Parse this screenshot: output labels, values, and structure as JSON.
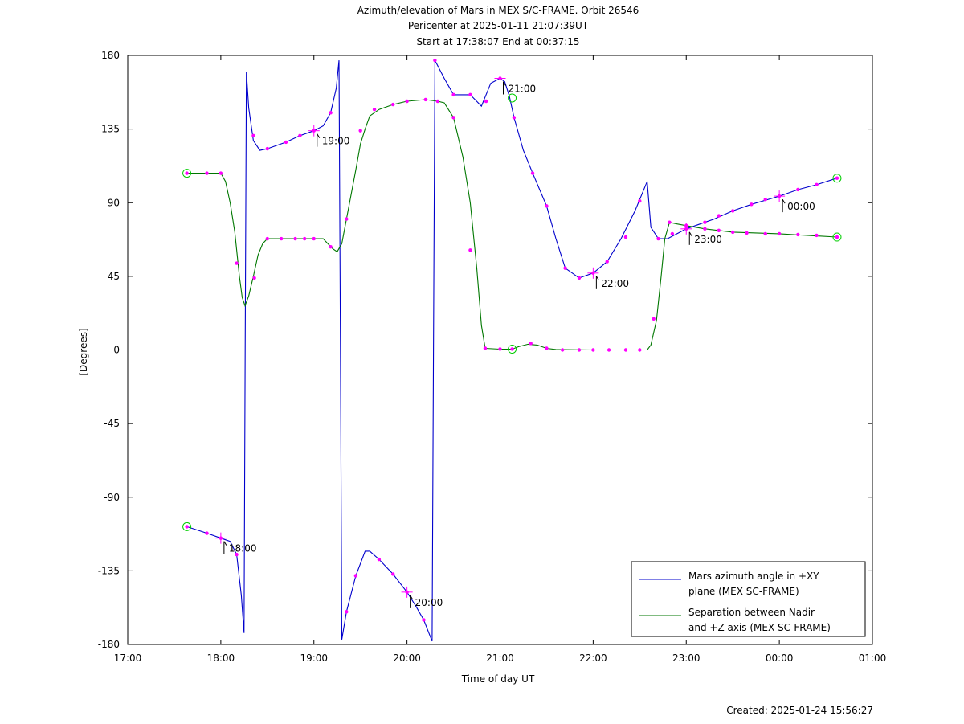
{
  "chart_data": {
    "type": "line",
    "title_lines": [
      "Azimuth/elevation of Mars in MEX S/C-FRAME.  Orbit 26546",
      "Pericenter at 2025-01-11 21:07:39UT",
      "Start at 17:38:07 End at 00:37:15"
    ],
    "xlabel": "Time of day UT",
    "ylabel": "[Degrees]",
    "xlim": [
      17,
      25
    ],
    "ylim": [
      -180,
      180
    ],
    "x_ticks": [
      {
        "v": 17,
        "label": "17:00"
      },
      {
        "v": 18,
        "label": "18:00"
      },
      {
        "v": 19,
        "label": "19:00"
      },
      {
        "v": 20,
        "label": "20:00"
      },
      {
        "v": 21,
        "label": "21:00"
      },
      {
        "v": 22,
        "label": "22:00"
      },
      {
        "v": 23,
        "label": "23:00"
      },
      {
        "v": 24,
        "label": "00:00"
      },
      {
        "v": 25,
        "label": "01:00"
      }
    ],
    "y_ticks": [
      {
        "v": 180,
        "label": "180"
      },
      {
        "v": 135,
        "label": "135"
      },
      {
        "v": 90,
        "label": "90"
      },
      {
        "v": 45,
        "label": "45"
      },
      {
        "v": 0,
        "label": "0"
      },
      {
        "v": -45,
        "label": "-45"
      },
      {
        "v": -90,
        "label": "-90"
      },
      {
        "v": -135,
        "label": "-135"
      },
      {
        "v": -180,
        "label": "-180"
      }
    ],
    "legend_position": "bottom-right",
    "series": [
      {
        "name_lines": [
          "Mars azimuth angle in +XY",
          "plane (MEX SC-FRAME)"
        ],
        "color": "#0000cc",
        "points": [
          [
            17.635,
            -108
          ],
          [
            17.85,
            -112
          ],
          [
            18.0,
            -115
          ],
          [
            18.1,
            -117
          ],
          [
            18.17,
            -125
          ],
          [
            18.22,
            -150
          ],
          [
            18.25,
            -173
          ],
          [
            18.262,
            0
          ],
          [
            18.275,
            170
          ],
          [
            18.3,
            148
          ],
          [
            18.35,
            128
          ],
          [
            18.42,
            122
          ],
          [
            18.5,
            123
          ],
          [
            18.7,
            127
          ],
          [
            18.85,
            131
          ],
          [
            19.0,
            134
          ],
          [
            19.1,
            137
          ],
          [
            19.18,
            145
          ],
          [
            19.24,
            160
          ],
          [
            19.27,
            177
          ],
          [
            19.285,
            0
          ],
          [
            19.3,
            -177
          ],
          [
            19.35,
            -160
          ],
          [
            19.45,
            -138
          ],
          [
            19.55,
            -123
          ],
          [
            19.6,
            -123
          ],
          [
            19.7,
            -128
          ],
          [
            19.85,
            -137
          ],
          [
            20.0,
            -148
          ],
          [
            20.1,
            -157
          ],
          [
            20.18,
            -165
          ],
          [
            20.27,
            -178
          ],
          [
            20.285,
            0
          ],
          [
            20.3,
            177
          ],
          [
            20.4,
            166
          ],
          [
            20.5,
            156
          ],
          [
            20.6,
            156
          ],
          [
            20.68,
            156
          ],
          [
            20.8,
            149
          ],
          [
            20.9,
            163
          ],
          [
            21.0,
            166
          ],
          [
            21.05,
            164
          ],
          [
            21.1,
            155
          ],
          [
            21.15,
            142
          ],
          [
            21.25,
            122
          ],
          [
            21.35,
            108
          ],
          [
            21.5,
            88
          ],
          [
            21.6,
            68
          ],
          [
            21.7,
            50
          ],
          [
            21.85,
            44
          ],
          [
            22.0,
            47
          ],
          [
            22.15,
            54
          ],
          [
            22.3,
            68
          ],
          [
            22.45,
            85
          ],
          [
            22.58,
            103
          ],
          [
            22.62,
            75
          ],
          [
            22.7,
            68
          ],
          [
            22.8,
            68
          ],
          [
            22.9,
            71
          ],
          [
            23.0,
            74
          ],
          [
            23.15,
            77
          ],
          [
            23.3,
            80
          ],
          [
            23.5,
            85
          ],
          [
            23.7,
            89
          ],
          [
            24.0,
            94
          ],
          [
            24.2,
            98
          ],
          [
            24.4,
            101
          ],
          [
            24.62,
            105
          ]
        ],
        "markers": [
          [
            17.635,
            -108
          ],
          [
            17.85,
            -112
          ],
          [
            18.0,
            -115
          ],
          [
            18.17,
            -125
          ],
          [
            18.35,
            131
          ],
          [
            18.5,
            123
          ],
          [
            18.7,
            127
          ],
          [
            18.85,
            131
          ],
          [
            19.0,
            134
          ],
          [
            19.18,
            145
          ],
          [
            19.35,
            -160
          ],
          [
            19.45,
            -138
          ],
          [
            19.7,
            -128
          ],
          [
            19.85,
            -137
          ],
          [
            20.0,
            -148
          ],
          [
            20.18,
            -165
          ],
          [
            20.3,
            177
          ],
          [
            20.5,
            156
          ],
          [
            20.68,
            156
          ],
          [
            20.85,
            152
          ],
          [
            21.0,
            166
          ],
          [
            21.15,
            142
          ],
          [
            21.35,
            108
          ],
          [
            21.5,
            88
          ],
          [
            21.7,
            50
          ],
          [
            21.85,
            44
          ],
          [
            22.0,
            47
          ],
          [
            22.15,
            54
          ],
          [
            22.35,
            69
          ],
          [
            22.5,
            91
          ],
          [
            22.7,
            68
          ],
          [
            22.85,
            71
          ],
          [
            23.0,
            74
          ],
          [
            23.2,
            78
          ],
          [
            23.35,
            82
          ],
          [
            23.5,
            85
          ],
          [
            23.7,
            89
          ],
          [
            23.85,
            92
          ],
          [
            24.0,
            94
          ],
          [
            24.2,
            98
          ],
          [
            24.4,
            101
          ],
          [
            24.62,
            105
          ]
        ]
      },
      {
        "name_lines": [
          "Separation between Nadir",
          "and +Z axis (MEX SC-FRAME)"
        ],
        "color": "#007700",
        "points": [
          [
            17.635,
            108
          ],
          [
            18.0,
            108
          ],
          [
            18.05,
            103
          ],
          [
            18.1,
            90
          ],
          [
            18.15,
            72
          ],
          [
            18.2,
            45
          ],
          [
            18.23,
            32
          ],
          [
            18.26,
            27
          ],
          [
            18.3,
            33
          ],
          [
            18.35,
            45
          ],
          [
            18.4,
            58
          ],
          [
            18.45,
            65
          ],
          [
            18.5,
            68
          ],
          [
            18.6,
            68
          ],
          [
            18.8,
            68
          ],
          [
            19.0,
            68
          ],
          [
            19.1,
            68
          ],
          [
            19.15,
            65
          ],
          [
            19.2,
            62
          ],
          [
            19.25,
            60
          ],
          [
            19.3,
            65
          ],
          [
            19.35,
            80
          ],
          [
            19.45,
            110
          ],
          [
            19.5,
            126
          ],
          [
            19.55,
            135
          ],
          [
            19.6,
            143
          ],
          [
            19.7,
            147
          ],
          [
            19.85,
            150
          ],
          [
            20.0,
            152
          ],
          [
            20.2,
            153
          ],
          [
            20.33,
            152
          ],
          [
            20.4,
            151
          ],
          [
            20.5,
            142
          ],
          [
            20.6,
            118
          ],
          [
            20.68,
            90
          ],
          [
            20.75,
            50
          ],
          [
            20.8,
            15
          ],
          [
            20.84,
            1
          ],
          [
            21.0,
            0.5
          ],
          [
            21.13,
            0.5
          ],
          [
            21.2,
            2
          ],
          [
            21.3,
            3.5
          ],
          [
            21.4,
            3
          ],
          [
            21.5,
            1
          ],
          [
            21.6,
            0.3
          ],
          [
            22.0,
            0
          ],
          [
            22.58,
            0
          ],
          [
            22.62,
            3
          ],
          [
            22.68,
            18
          ],
          [
            22.73,
            45
          ],
          [
            22.77,
            68
          ],
          [
            22.82,
            78
          ],
          [
            22.9,
            77
          ],
          [
            23.0,
            76
          ],
          [
            23.2,
            74
          ],
          [
            23.5,
            72
          ],
          [
            24.0,
            71
          ],
          [
            24.3,
            70
          ],
          [
            24.62,
            69
          ]
        ],
        "markers": [
          [
            17.635,
            108
          ],
          [
            17.85,
            108
          ],
          [
            18.0,
            108
          ],
          [
            18.17,
            53
          ],
          [
            18.36,
            44
          ],
          [
            18.5,
            68
          ],
          [
            18.65,
            68
          ],
          [
            18.8,
            68
          ],
          [
            18.9,
            68
          ],
          [
            19.0,
            68
          ],
          [
            19.18,
            63
          ],
          [
            19.35,
            80
          ],
          [
            19.5,
            134
          ],
          [
            19.65,
            147
          ],
          [
            19.85,
            150
          ],
          [
            20.0,
            152
          ],
          [
            20.2,
            153
          ],
          [
            20.33,
            152
          ],
          [
            20.5,
            142
          ],
          [
            20.68,
            61
          ],
          [
            20.84,
            1
          ],
          [
            21.0,
            0.5
          ],
          [
            21.13,
            0.5
          ],
          [
            21.33,
            4
          ],
          [
            21.5,
            1
          ],
          [
            21.67,
            0
          ],
          [
            21.85,
            0
          ],
          [
            22.0,
            0
          ],
          [
            22.17,
            0
          ],
          [
            22.35,
            0
          ],
          [
            22.5,
            0
          ],
          [
            22.65,
            19
          ],
          [
            22.82,
            78
          ],
          [
            23.0,
            76
          ],
          [
            23.2,
            74
          ],
          [
            23.35,
            73
          ],
          [
            23.5,
            72
          ],
          [
            23.65,
            71.5
          ],
          [
            23.85,
            71
          ],
          [
            24.0,
            71
          ],
          [
            24.2,
            70.5
          ],
          [
            24.4,
            70
          ],
          [
            24.62,
            69
          ]
        ]
      }
    ],
    "start_end_markers": [
      [
        17.635,
        -108
      ],
      [
        24.62,
        105
      ],
      [
        17.635,
        108
      ],
      [
        24.62,
        69
      ],
      [
        21.13,
        154
      ],
      [
        21.13,
        0.5
      ]
    ],
    "hour_annotations": [
      {
        "label": "18:00",
        "x": 18.0,
        "y": -115
      },
      {
        "label": "19:00",
        "x": 19.0,
        "y": 134
      },
      {
        "label": "20:00",
        "x": 20.0,
        "y": -148
      },
      {
        "label": "21:00",
        "x": 21.0,
        "y": 166
      },
      {
        "label": "22:00",
        "x": 22.0,
        "y": 47
      },
      {
        "label": "23:00",
        "x": 23.0,
        "y": 74
      },
      {
        "label": "00:00",
        "x": 24.0,
        "y": 94
      }
    ],
    "footer": "Created: 2025-01-24 15:56:27"
  }
}
